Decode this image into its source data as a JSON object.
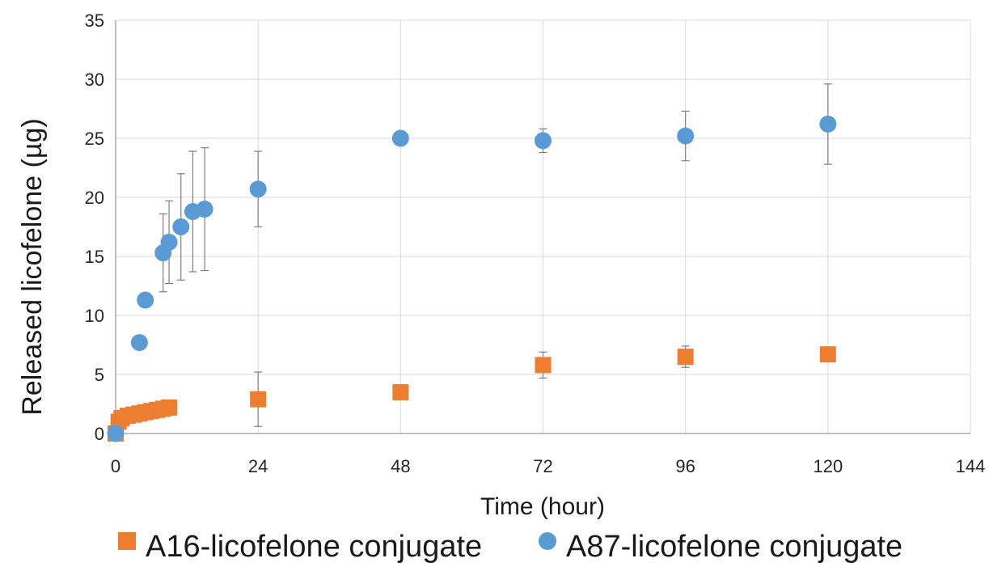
{
  "chart_data": {
    "type": "scatter",
    "title": "",
    "xlabel": "Time (hour)",
    "ylabel": "Released licofelone (µg)",
    "xlim": [
      0,
      144
    ],
    "ylim": [
      0,
      35
    ],
    "x_ticks": [
      0,
      24,
      48,
      72,
      96,
      120,
      144
    ],
    "y_ticks": [
      0,
      5,
      10,
      15,
      20,
      25,
      30,
      35
    ],
    "x_tick_labels": [
      "0",
      "24",
      "48",
      "72",
      "96",
      "120",
      "144"
    ],
    "y_tick_labels": [
      "0",
      "5",
      "10",
      "15",
      "20",
      "25",
      "30",
      "35"
    ],
    "grid": true,
    "legend_position": "bottom",
    "series": [
      {
        "name": "A16-licofelone conjugate",
        "marker": "square",
        "color": "#ED7D31",
        "x": [
          0,
          0.5,
          1,
          2,
          3,
          4,
          5,
          6,
          7,
          8,
          9,
          24,
          48,
          72,
          96,
          120
        ],
        "y": [
          0,
          1.0,
          1.3,
          1.5,
          1.6,
          1.7,
          1.8,
          1.9,
          2.0,
          2.1,
          2.2,
          2.9,
          3.5,
          5.8,
          6.5,
          6.7
        ],
        "error": [
          0,
          0,
          0,
          0,
          0,
          0,
          0,
          0,
          0,
          0,
          0,
          2.3,
          0,
          1.1,
          0.9,
          0
        ]
      },
      {
        "name": "A87-licofelone conjugate",
        "marker": "circle",
        "color": "#5B9BD5",
        "x": [
          0,
          4,
          5,
          8,
          9,
          11,
          13,
          15,
          24,
          48,
          72,
          96,
          120
        ],
        "y": [
          0,
          7.7,
          11.3,
          15.3,
          16.2,
          17.5,
          18.8,
          19.0,
          20.7,
          25.0,
          24.8,
          25.2,
          26.2
        ],
        "error": [
          0,
          0,
          0.6,
          3.3,
          3.5,
          4.5,
          5.1,
          5.2,
          3.2,
          0,
          1.0,
          2.1,
          3.4
        ]
      }
    ]
  }
}
